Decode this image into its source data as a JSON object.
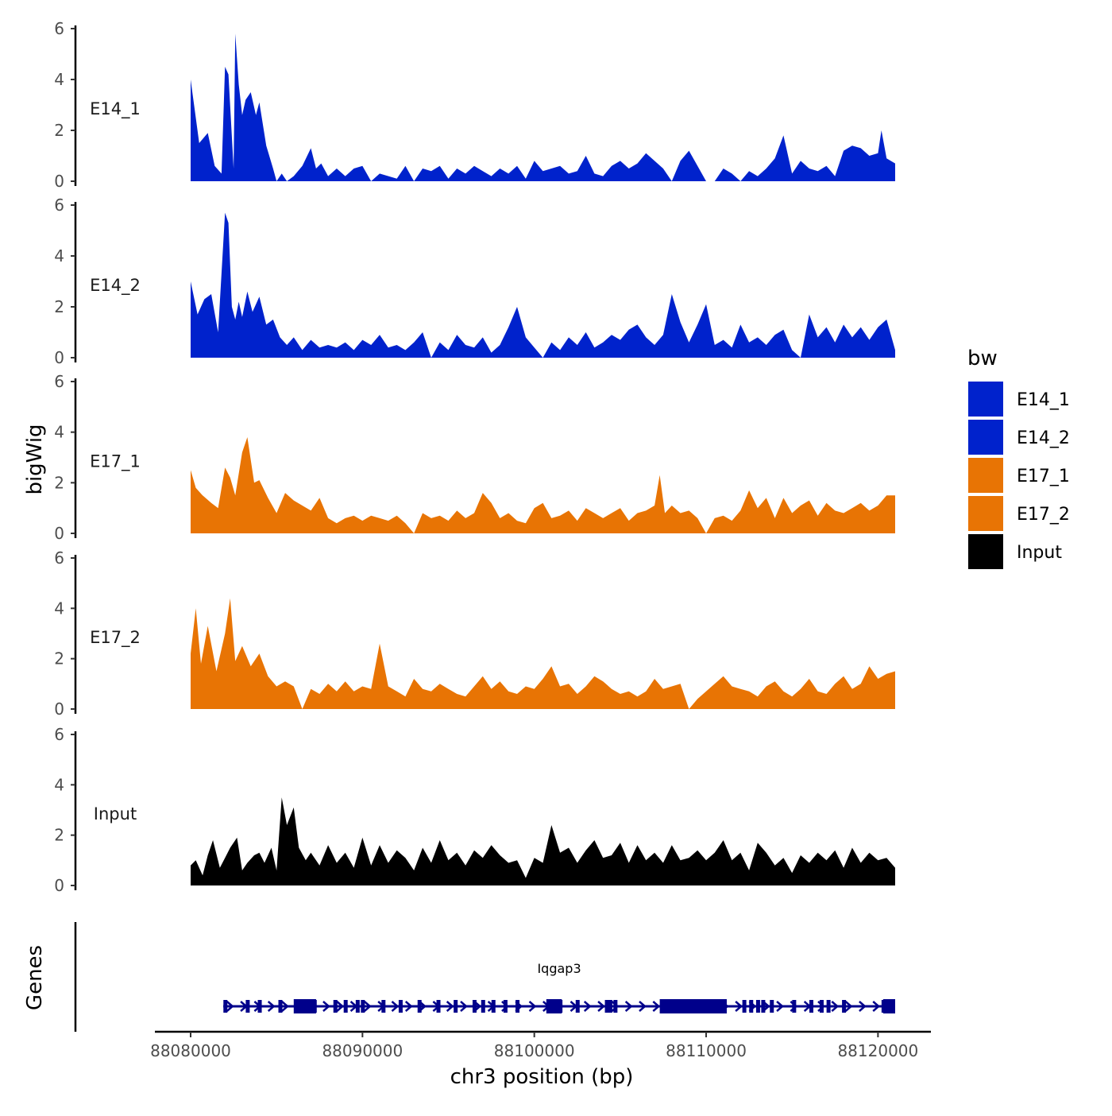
{
  "chart_data": {
    "type": "area",
    "title": "",
    "xlabel": "chr3 position (bp)",
    "ylabel": "bigWig",
    "genes_label": "Genes",
    "xlim": [
      88080000,
      88121000
    ],
    "ylim": [
      0,
      6
    ],
    "x_ticks": [
      88080000,
      88090000,
      88100000,
      88110000,
      88120000
    ],
    "x_tick_labels": [
      "88080000",
      "88090000",
      "88100000",
      "88110000",
      "88120000"
    ],
    "y_ticks": [
      0,
      2,
      4,
      6
    ],
    "y_tick_labels": [
      "0",
      "2",
      "4",
      "6"
    ],
    "legend": {
      "title": "bw",
      "placement": "right",
      "entries": [
        {
          "name": "E14_1",
          "color": "#0022cc"
        },
        {
          "name": "E14_2",
          "color": "#0022cc"
        },
        {
          "name": "E17_1",
          "color": "#e87404"
        },
        {
          "name": "E17_2",
          "color": "#e87404"
        },
        {
          "name": "Input",
          "color": "#000000"
        }
      ]
    },
    "series": [
      {
        "name": "E14_1",
        "color": "#0022cc",
        "x": [
          88080000,
          88080500,
          88081000,
          88081400,
          88081800,
          88082000,
          88082200,
          88082500,
          88082600,
          88082800,
          88083000,
          88083200,
          88083500,
          88083800,
          88084000,
          88084400,
          88084800,
          88085000,
          88085300,
          88085600,
          88086000,
          88086500,
          88087000,
          88087300,
          88087600,
          88088000,
          88088500,
          88089000,
          88089500,
          88090000,
          88090500,
          88091000,
          88092000,
          88092500,
          88093000,
          88093500,
          88094000,
          88094500,
          88095000,
          88095500,
          88096000,
          88096500,
          88097000,
          88097500,
          88098000,
          88098500,
          88099000,
          88099500,
          88100000,
          88100500,
          88101000,
          88101500,
          88102000,
          88102500,
          88103000,
          88103500,
          88104000,
          88104500,
          88105000,
          88105500,
          88106000,
          88106500,
          88107000,
          88107500,
          88108000,
          88108500,
          88109000,
          88109500,
          88110000,
          88110500,
          88111000,
          88111500,
          88112000,
          88112500,
          88113000,
          88113500,
          88114000,
          88114500,
          88115000,
          88115500,
          88116000,
          88116500,
          88117000,
          88117500,
          88118000,
          88118500,
          88119000,
          88119500,
          88120000,
          88120200,
          88120500,
          88121000
        ],
        "values": [
          4.0,
          1.5,
          1.9,
          0.6,
          0.3,
          4.5,
          4.2,
          0.5,
          5.8,
          3.8,
          2.6,
          3.2,
          3.5,
          2.6,
          3.1,
          1.4,
          0.5,
          0,
          0.3,
          0,
          0.2,
          0.6,
          1.3,
          0.5,
          0.7,
          0.2,
          0.5,
          0.2,
          0.5,
          0.6,
          0,
          0.3,
          0.1,
          0.6,
          0,
          0.5,
          0.4,
          0.6,
          0.1,
          0.5,
          0.3,
          0.6,
          0.4,
          0.2,
          0.5,
          0.3,
          0.6,
          0.1,
          0.8,
          0.4,
          0.5,
          0.6,
          0.3,
          0.4,
          1.0,
          0.3,
          0.2,
          0.6,
          0.8,
          0.5,
          0.7,
          1.1,
          0.8,
          0.5,
          0,
          0.8,
          1.2,
          0.6,
          0,
          0,
          0.5,
          0.3,
          0,
          0.4,
          0.2,
          0.5,
          0.9,
          1.8,
          0.3,
          0.8,
          0.5,
          0.4,
          0.6,
          0.2,
          1.2,
          1.4,
          1.3,
          1.0,
          1.1,
          2.0,
          0.9,
          0.7
        ]
      },
      {
        "name": "E14_2",
        "color": "#0022cc",
        "x": [
          88080000,
          88080400,
          88080800,
          88081200,
          88081600,
          88082000,
          88082200,
          88082400,
          88082600,
          88082800,
          88083000,
          88083300,
          88083600,
          88084000,
          88084400,
          88084800,
          88085200,
          88085600,
          88086000,
          88086500,
          88087000,
          88087500,
          88088000,
          88088500,
          88089000,
          88089500,
          88090000,
          88090500,
          88091000,
          88091500,
          88092000,
          88092500,
          88093000,
          88093500,
          88094000,
          88094500,
          88095000,
          88095500,
          88096000,
          88096500,
          88097000,
          88097500,
          88098000,
          88098500,
          88099000,
          88099500,
          88100000,
          88100500,
          88101000,
          88101500,
          88102000,
          88102500,
          88103000,
          88103500,
          88104000,
          88104500,
          88105000,
          88105500,
          88106000,
          88106500,
          88107000,
          88107500,
          88108000,
          88108500,
          88109000,
          88109500,
          88110000,
          88110500,
          88111000,
          88111500,
          88112000,
          88112500,
          88113000,
          88113500,
          88114000,
          88114500,
          88115000,
          88115500,
          88116000,
          88116500,
          88117000,
          88117500,
          88118000,
          88118500,
          88119000,
          88119500,
          88120000,
          88120500,
          88121000
        ],
        "values": [
          3.0,
          1.7,
          2.3,
          2.5,
          1.0,
          5.7,
          5.3,
          2.0,
          1.5,
          2.2,
          1.6,
          2.6,
          1.8,
          2.4,
          1.3,
          1.5,
          0.8,
          0.5,
          0.8,
          0.3,
          0.7,
          0.4,
          0.5,
          0.4,
          0.6,
          0.3,
          0.7,
          0.5,
          0.9,
          0.4,
          0.5,
          0.3,
          0.6,
          1.0,
          0,
          0.6,
          0.3,
          0.9,
          0.5,
          0.4,
          0.8,
          0.2,
          0.5,
          1.2,
          2.0,
          0.8,
          0.4,
          0,
          0.6,
          0.3,
          0.8,
          0.5,
          1.0,
          0.4,
          0.6,
          0.9,
          0.7,
          1.1,
          1.3,
          0.8,
          0.5,
          0.9,
          2.5,
          1.4,
          0.6,
          1.3,
          2.1,
          0.5,
          0.7,
          0.4,
          1.3,
          0.6,
          0.8,
          0.5,
          0.9,
          1.1,
          0.3,
          0,
          1.7,
          0.8,
          1.2,
          0.6,
          1.3,
          0.8,
          1.2,
          0.7,
          1.2,
          1.5,
          0.3
        ]
      },
      {
        "name": "E17_1",
        "color": "#e87404",
        "x": [
          88080000,
          88080300,
          88080700,
          88081200,
          88081600,
          88082000,
          88082300,
          88082600,
          88083000,
          88083300,
          88083700,
          88084000,
          88084500,
          88085000,
          88085500,
          88086000,
          88086500,
          88087000,
          88087500,
          88088000,
          88088500,
          88089000,
          88089500,
          88090000,
          88090500,
          88091000,
          88091500,
          88092000,
          88092500,
          88093000,
          88093500,
          88094000,
          88094500,
          88095000,
          88095500,
          88096000,
          88096500,
          88097000,
          88097500,
          88098000,
          88098500,
          88099000,
          88099500,
          88100000,
          88100500,
          88101000,
          88101500,
          88102000,
          88102500,
          88103000,
          88103500,
          88104000,
          88104500,
          88105000,
          88105500,
          88106000,
          88106500,
          88107000,
          88107300,
          88107600,
          88108000,
          88108500,
          88109000,
          88109500,
          88110000,
          88110500,
          88111000,
          88111500,
          88112000,
          88112500,
          88113000,
          88113500,
          88114000,
          88114500,
          88115000,
          88115500,
          88116000,
          88116500,
          88117000,
          88117500,
          88118000,
          88118500,
          88119000,
          88119500,
          88120000,
          88120500,
          88121000
        ],
        "values": [
          2.5,
          1.8,
          1.5,
          1.2,
          1.0,
          2.6,
          2.2,
          1.5,
          3.2,
          3.8,
          2.0,
          2.1,
          1.4,
          0.8,
          1.6,
          1.3,
          1.1,
          0.9,
          1.4,
          0.6,
          0.4,
          0.6,
          0.7,
          0.5,
          0.7,
          0.6,
          0.5,
          0.7,
          0.4,
          0,
          0.8,
          0.6,
          0.7,
          0.5,
          0.9,
          0.6,
          0.8,
          1.6,
          1.2,
          0.6,
          0.8,
          0.5,
          0.4,
          1.0,
          1.2,
          0.6,
          0.7,
          0.9,
          0.5,
          1.0,
          0.8,
          0.6,
          0.8,
          1.0,
          0.5,
          0.8,
          0.9,
          1.1,
          2.3,
          0.8,
          1.1,
          0.8,
          0.9,
          0.6,
          0,
          0.6,
          0.7,
          0.5,
          0.9,
          1.7,
          1.0,
          1.4,
          0.6,
          1.4,
          0.8,
          1.1,
          1.3,
          0.7,
          1.2,
          0.9,
          0.8,
          1.0,
          1.2,
          0.9,
          1.1,
          1.5,
          1.5
        ]
      },
      {
        "name": "E17_2",
        "color": "#e87404",
        "x": [
          88080000,
          88080300,
          88080600,
          88081000,
          88081500,
          88082000,
          88082300,
          88082600,
          88083000,
          88083500,
          88084000,
          88084500,
          88085000,
          88085500,
          88086000,
          88086500,
          88087000,
          88087500,
          88088000,
          88088500,
          88089000,
          88089500,
          88090000,
          88090500,
          88091000,
          88091500,
          88092000,
          88092500,
          88093000,
          88093500,
          88094000,
          88094500,
          88095000,
          88095500,
          88096000,
          88096500,
          88097000,
          88097500,
          88098000,
          88098500,
          88099000,
          88099500,
          88100000,
          88100500,
          88101000,
          88101500,
          88102000,
          88102500,
          88103000,
          88103500,
          88104000,
          88104500,
          88105000,
          88105500,
          88106000,
          88106500,
          88107000,
          88107500,
          88108000,
          88108500,
          88109000,
          88109500,
          88110000,
          88110500,
          88111000,
          88111500,
          88112000,
          88112500,
          88113000,
          88113500,
          88114000,
          88114500,
          88115000,
          88115500,
          88116000,
          88116500,
          88117000,
          88117500,
          88118000,
          88118500,
          88119000,
          88119500,
          88120000,
          88120500,
          88121000
        ],
        "values": [
          2.2,
          4.0,
          1.8,
          3.3,
          1.5,
          3.0,
          4.4,
          1.9,
          2.5,
          1.7,
          2.2,
          1.3,
          0.9,
          1.1,
          0.9,
          0,
          0.8,
          0.6,
          1.0,
          0.7,
          1.1,
          0.7,
          0.9,
          0.8,
          2.6,
          0.9,
          0.7,
          0.5,
          1.2,
          0.8,
          0.7,
          1.0,
          0.8,
          0.6,
          0.5,
          0.9,
          1.3,
          0.8,
          1.1,
          0.7,
          0.6,
          0.9,
          0.8,
          1.2,
          1.7,
          0.9,
          1.0,
          0.6,
          0.9,
          1.3,
          1.1,
          0.8,
          0.6,
          0.7,
          0.5,
          0.7,
          1.2,
          0.8,
          0.9,
          1.0,
          0,
          0.4,
          0.7,
          1.0,
          1.3,
          0.9,
          0.8,
          0.7,
          0.5,
          0.9,
          1.1,
          0.7,
          0.5,
          0.8,
          1.2,
          0.7,
          0.6,
          1.0,
          1.3,
          0.8,
          1.0,
          1.7,
          1.2,
          1.4,
          1.5
        ]
      },
      {
        "name": "Input",
        "color": "#000000",
        "x": [
          88080000,
          88080300,
          88080700,
          88081000,
          88081300,
          88081700,
          88082000,
          88082300,
          88082700,
          88083000,
          88083300,
          88083700,
          88084000,
          88084300,
          88084700,
          88085000,
          88085300,
          88085600,
          88086000,
          88086300,
          88086700,
          88087000,
          88087500,
          88088000,
          88088500,
          88089000,
          88089500,
          88090000,
          88090500,
          88091000,
          88091500,
          88092000,
          88092500,
          88093000,
          88093500,
          88094000,
          88094500,
          88095000,
          88095500,
          88096000,
          88096500,
          88097000,
          88097500,
          88098000,
          88098500,
          88099000,
          88099500,
          88100000,
          88100500,
          88101000,
          88101500,
          88102000,
          88102500,
          88103000,
          88103500,
          88104000,
          88104500,
          88105000,
          88105500,
          88106000,
          88106500,
          88107000,
          88107500,
          88108000,
          88108500,
          88109000,
          88109500,
          88110000,
          88110500,
          88111000,
          88111500,
          88112000,
          88112500,
          88113000,
          88113500,
          88114000,
          88114500,
          88115000,
          88115500,
          88116000,
          88116500,
          88117000,
          88117500,
          88118000,
          88118500,
          88119000,
          88119500,
          88120000,
          88120500,
          88121000
        ],
        "values": [
          0.8,
          1.0,
          0.4,
          1.2,
          1.8,
          0.7,
          1.1,
          1.5,
          1.9,
          0.6,
          0.9,
          1.2,
          1.3,
          0.9,
          1.5,
          0.6,
          3.5,
          2.4,
          3.1,
          1.5,
          1.0,
          1.3,
          0.8,
          1.6,
          0.9,
          1.3,
          0.7,
          1.9,
          0.8,
          1.6,
          0.9,
          1.4,
          1.1,
          0.6,
          1.5,
          0.9,
          1.8,
          1.0,
          1.3,
          0.8,
          1.4,
          1.1,
          1.6,
          1.2,
          0.9,
          1.0,
          0.3,
          1.1,
          0.9,
          2.4,
          1.3,
          1.5,
          0.9,
          1.4,
          1.8,
          1.1,
          1.2,
          1.7,
          0.9,
          1.6,
          1.0,
          1.3,
          0.9,
          1.6,
          1.0,
          1.1,
          1.4,
          1.0,
          1.3,
          1.8,
          1.0,
          1.3,
          0.6,
          1.7,
          1.3,
          0.8,
          1.1,
          0.5,
          1.2,
          0.9,
          1.3,
          1.0,
          1.4,
          0.7,
          1.5,
          0.9,
          1.3,
          1.0,
          1.1,
          0.7
        ]
      }
    ],
    "genes": [
      {
        "name": "Iqgap3",
        "start": 88081900,
        "end": 88121000,
        "strand": "+",
        "exons": [
          88082000,
          88083300,
          88084000,
          88085200,
          88086600,
          88087000,
          88087200,
          88088400,
          88089000,
          88089700,
          88090000,
          88091200,
          88092200,
          88093300,
          88094400,
          88095400,
          88096500,
          88097000,
          88097600,
          88098300,
          88099000,
          88100800,
          88101000,
          88101500,
          88102500,
          88104200,
          88104400,
          88104700,
          88107500,
          88107700,
          88107900,
          88108100,
          88108300,
          88108500,
          88108700,
          88108900,
          88109100,
          88109300,
          88109500,
          88109700,
          88109900,
          88110100,
          88110300,
          88110500,
          88110700,
          88110900,
          88112200,
          88112600,
          88113000,
          88113300,
          88113800,
          88115100,
          88116100,
          88116700,
          88117100,
          88118000,
          88120300,
          88120500,
          88120700
        ]
      }
    ]
  }
}
